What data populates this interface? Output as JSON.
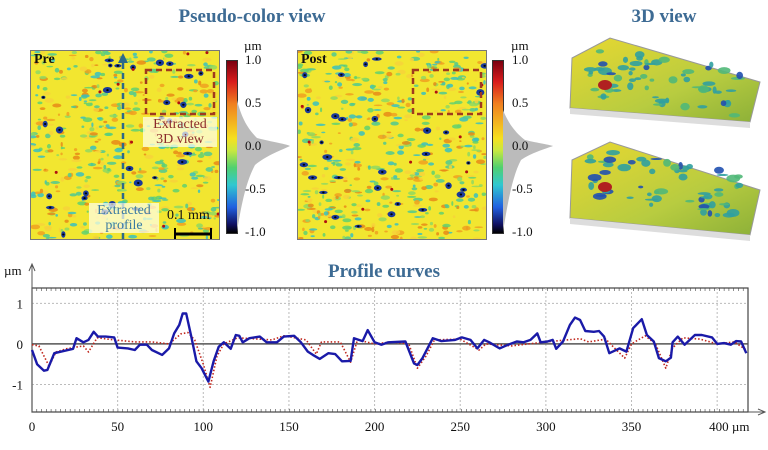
{
  "pseudo_color": {
    "title": "Pseudo-color view",
    "pre_label": "Pre",
    "post_label": "Post",
    "unit": "µm",
    "colorbar_ticks": [
      "1.0",
      "0.5",
      "0.0",
      "-0.5",
      "-1.0"
    ],
    "annotation_3d": "Extracted 3D view",
    "annotation_profile": "Extracted profile",
    "scale_bar": "0.1 mm",
    "colors": {
      "box": "#a0391e",
      "profile_line": "#2c6a8a",
      "surface": "#f2e630"
    }
  },
  "view_3d": {
    "title": "3D view"
  },
  "chart_data": {
    "type": "line",
    "title": "Profile curves",
    "xlabel": "µm",
    "ylabel": "µm",
    "xlim": [
      0,
      418
    ],
    "ylim": [
      -1.68,
      1.38
    ],
    "xticks": [
      0,
      50,
      100,
      150,
      200,
      250,
      300,
      350,
      400
    ],
    "xtick_labels": [
      "0",
      "50",
      "100",
      "150",
      "200",
      "250",
      "300",
      "350",
      "400 µm"
    ],
    "yticks": [
      1,
      0,
      -1
    ],
    "ytick_labels": [
      "1",
      "0",
      "-1"
    ],
    "grid": true,
    "series": [
      {
        "style": "solid",
        "color": "#1a1aa8",
        "x": [
          0,
          3,
          7,
          9,
          13,
          19,
          24,
          26,
          30,
          33,
          36,
          38.5,
          43,
          48,
          50,
          56,
          60,
          63,
          67,
          70,
          76,
          80,
          83,
          86,
          88,
          90,
          93,
          96,
          99,
          103,
          106,
          109,
          112,
          116,
          119,
          121,
          123,
          127,
          133,
          137,
          143,
          147,
          153,
          157,
          161,
          164,
          168,
          173,
          177,
          181,
          186,
          188,
          193,
          196,
          200,
          204,
          208,
          218,
          223,
          225,
          228,
          234,
          239,
          247,
          251,
          256,
          260,
          264,
          267,
          273,
          278,
          283,
          287,
          291,
          295,
          297,
          301,
          304,
          306,
          310,
          314,
          317,
          320,
          323,
          328,
          331,
          334,
          337,
          343,
          347,
          351,
          356,
          359,
          363,
          366,
          370,
          373,
          374,
          377,
          381,
          387,
          391,
          397,
          400,
          404,
          408,
          411,
          414,
          417
        ],
        "y": [
          -0.15,
          -0.5,
          -0.66,
          -0.64,
          -0.23,
          -0.17,
          -0.12,
          0.14,
          0.04,
          0.1,
          0.3,
          0.18,
          0.18,
          0.16,
          -0.09,
          -0.11,
          -0.15,
          -0.02,
          -0.02,
          -0.15,
          -0.27,
          -0.11,
          0.26,
          0.47,
          0.75,
          0.75,
          0.18,
          -0.43,
          -0.6,
          -0.93,
          -0.43,
          -0.07,
          0.04,
          -0.12,
          0.22,
          0.2,
          0.04,
          0.14,
          0.18,
          0.04,
          0.04,
          0.18,
          0.2,
          0.04,
          -0.19,
          -0.27,
          -0.37,
          -0.23,
          -0.25,
          -0.43,
          -0.42,
          0.14,
          0.07,
          0.34,
          0.04,
          -0.02,
          0.04,
          0.06,
          -0.48,
          -0.52,
          -0.35,
          0.14,
          0.07,
          0.1,
          0.16,
          0.1,
          -0.11,
          0.1,
          0.04,
          -0.11,
          -0.02,
          0.06,
          0.04,
          0.1,
          0.26,
          0.04,
          0.06,
          0.1,
          -0.12,
          0.06,
          0.47,
          0.65,
          0.59,
          0.32,
          0.3,
          0.32,
          0.18,
          -0.23,
          -0.11,
          -0.19,
          0.39,
          0.61,
          0.22,
          0.06,
          -0.35,
          -0.43,
          -0.34,
          0.04,
          0.18,
          -0.02,
          0.22,
          0.22,
          0.16,
          0,
          0.02,
          -0.02,
          0.07,
          0.06,
          -0.23
        ]
      },
      {
        "style": "dotted",
        "color": "#c0281e",
        "x": [
          0,
          4,
          7,
          10,
          14,
          20,
          30,
          33,
          38,
          48,
          60,
          70,
          80,
          87,
          91,
          95,
          100,
          104,
          108,
          112,
          120,
          140,
          147,
          160,
          166,
          169,
          180,
          186,
          190,
          200,
          210,
          220,
          225,
          230,
          235,
          250,
          261,
          265,
          280,
          300,
          320,
          325,
          335,
          340,
          346,
          350,
          358,
          364,
          370,
          374,
          380,
          390,
          400,
          410,
          417
        ],
        "y": [
          -0.02,
          -0.05,
          -0.3,
          -0.55,
          -0.2,
          -0.12,
          -0.05,
          -0.2,
          0.15,
          0.1,
          0.05,
          0.05,
          0,
          0.25,
          0.28,
          0.1,
          -0.5,
          -1.07,
          -0.3,
          0,
          0.15,
          0.1,
          0.2,
          0.1,
          -0.25,
          0.05,
          0.05,
          -0.45,
          0.1,
          0,
          0.05,
          0,
          -0.6,
          -0.3,
          0.1,
          0.12,
          -0.15,
          0,
          -0.05,
          0.05,
          0.13,
          0.05,
          0.12,
          -0.1,
          -0.35,
          0,
          0.2,
          0,
          -0.6,
          -0.1,
          0.15,
          0.12,
          0,
          0.05,
          -0.15
        ]
      }
    ]
  }
}
